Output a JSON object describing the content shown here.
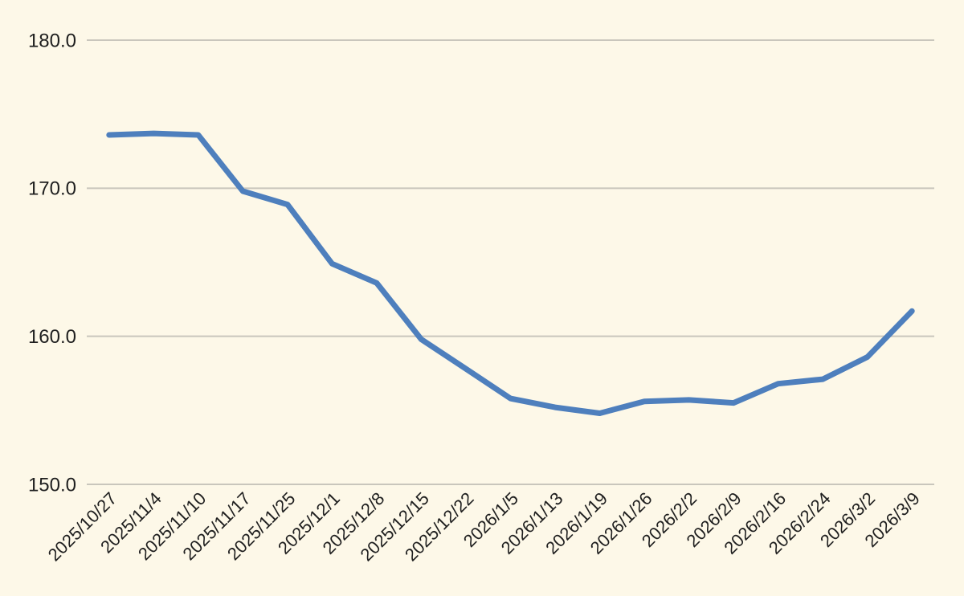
{
  "chart_data": {
    "type": "line",
    "title": "",
    "xlabel": "",
    "ylabel": "",
    "categories": [
      "2025/10/27",
      "2025/11/4",
      "2025/11/10",
      "2025/11/17",
      "2025/11/25",
      "2025/12/1",
      "2025/12/8",
      "2025/12/15",
      "2025/12/22",
      "2026/1/5",
      "2026/1/13",
      "2026/1/19",
      "2026/1/26",
      "2026/2/2",
      "2026/2/9",
      "2026/2/16",
      "2026/2/24",
      "2026/3/2",
      "2026/3/9"
    ],
    "values": [
      173.6,
      173.7,
      173.6,
      169.8,
      168.9,
      164.9,
      163.6,
      159.8,
      157.8,
      155.8,
      155.2,
      154.8,
      155.6,
      155.7,
      155.5,
      156.8,
      157.1,
      158.6,
      161.7
    ],
    "ylim": [
      150.0,
      180.0
    ],
    "ytick_values": [
      180,
      170,
      160,
      150
    ],
    "ytick_labels": [
      "180.0",
      "170.0",
      "160.0",
      "150.0"
    ],
    "xtick_rotation_deg": 45,
    "grid": "horizontal-only",
    "legend": "none",
    "colors": {
      "background": "#fdf8e8",
      "line": "#4e7fbd",
      "gridline": "#c9c6bc",
      "tick_text": "#1f1f1f"
    }
  }
}
